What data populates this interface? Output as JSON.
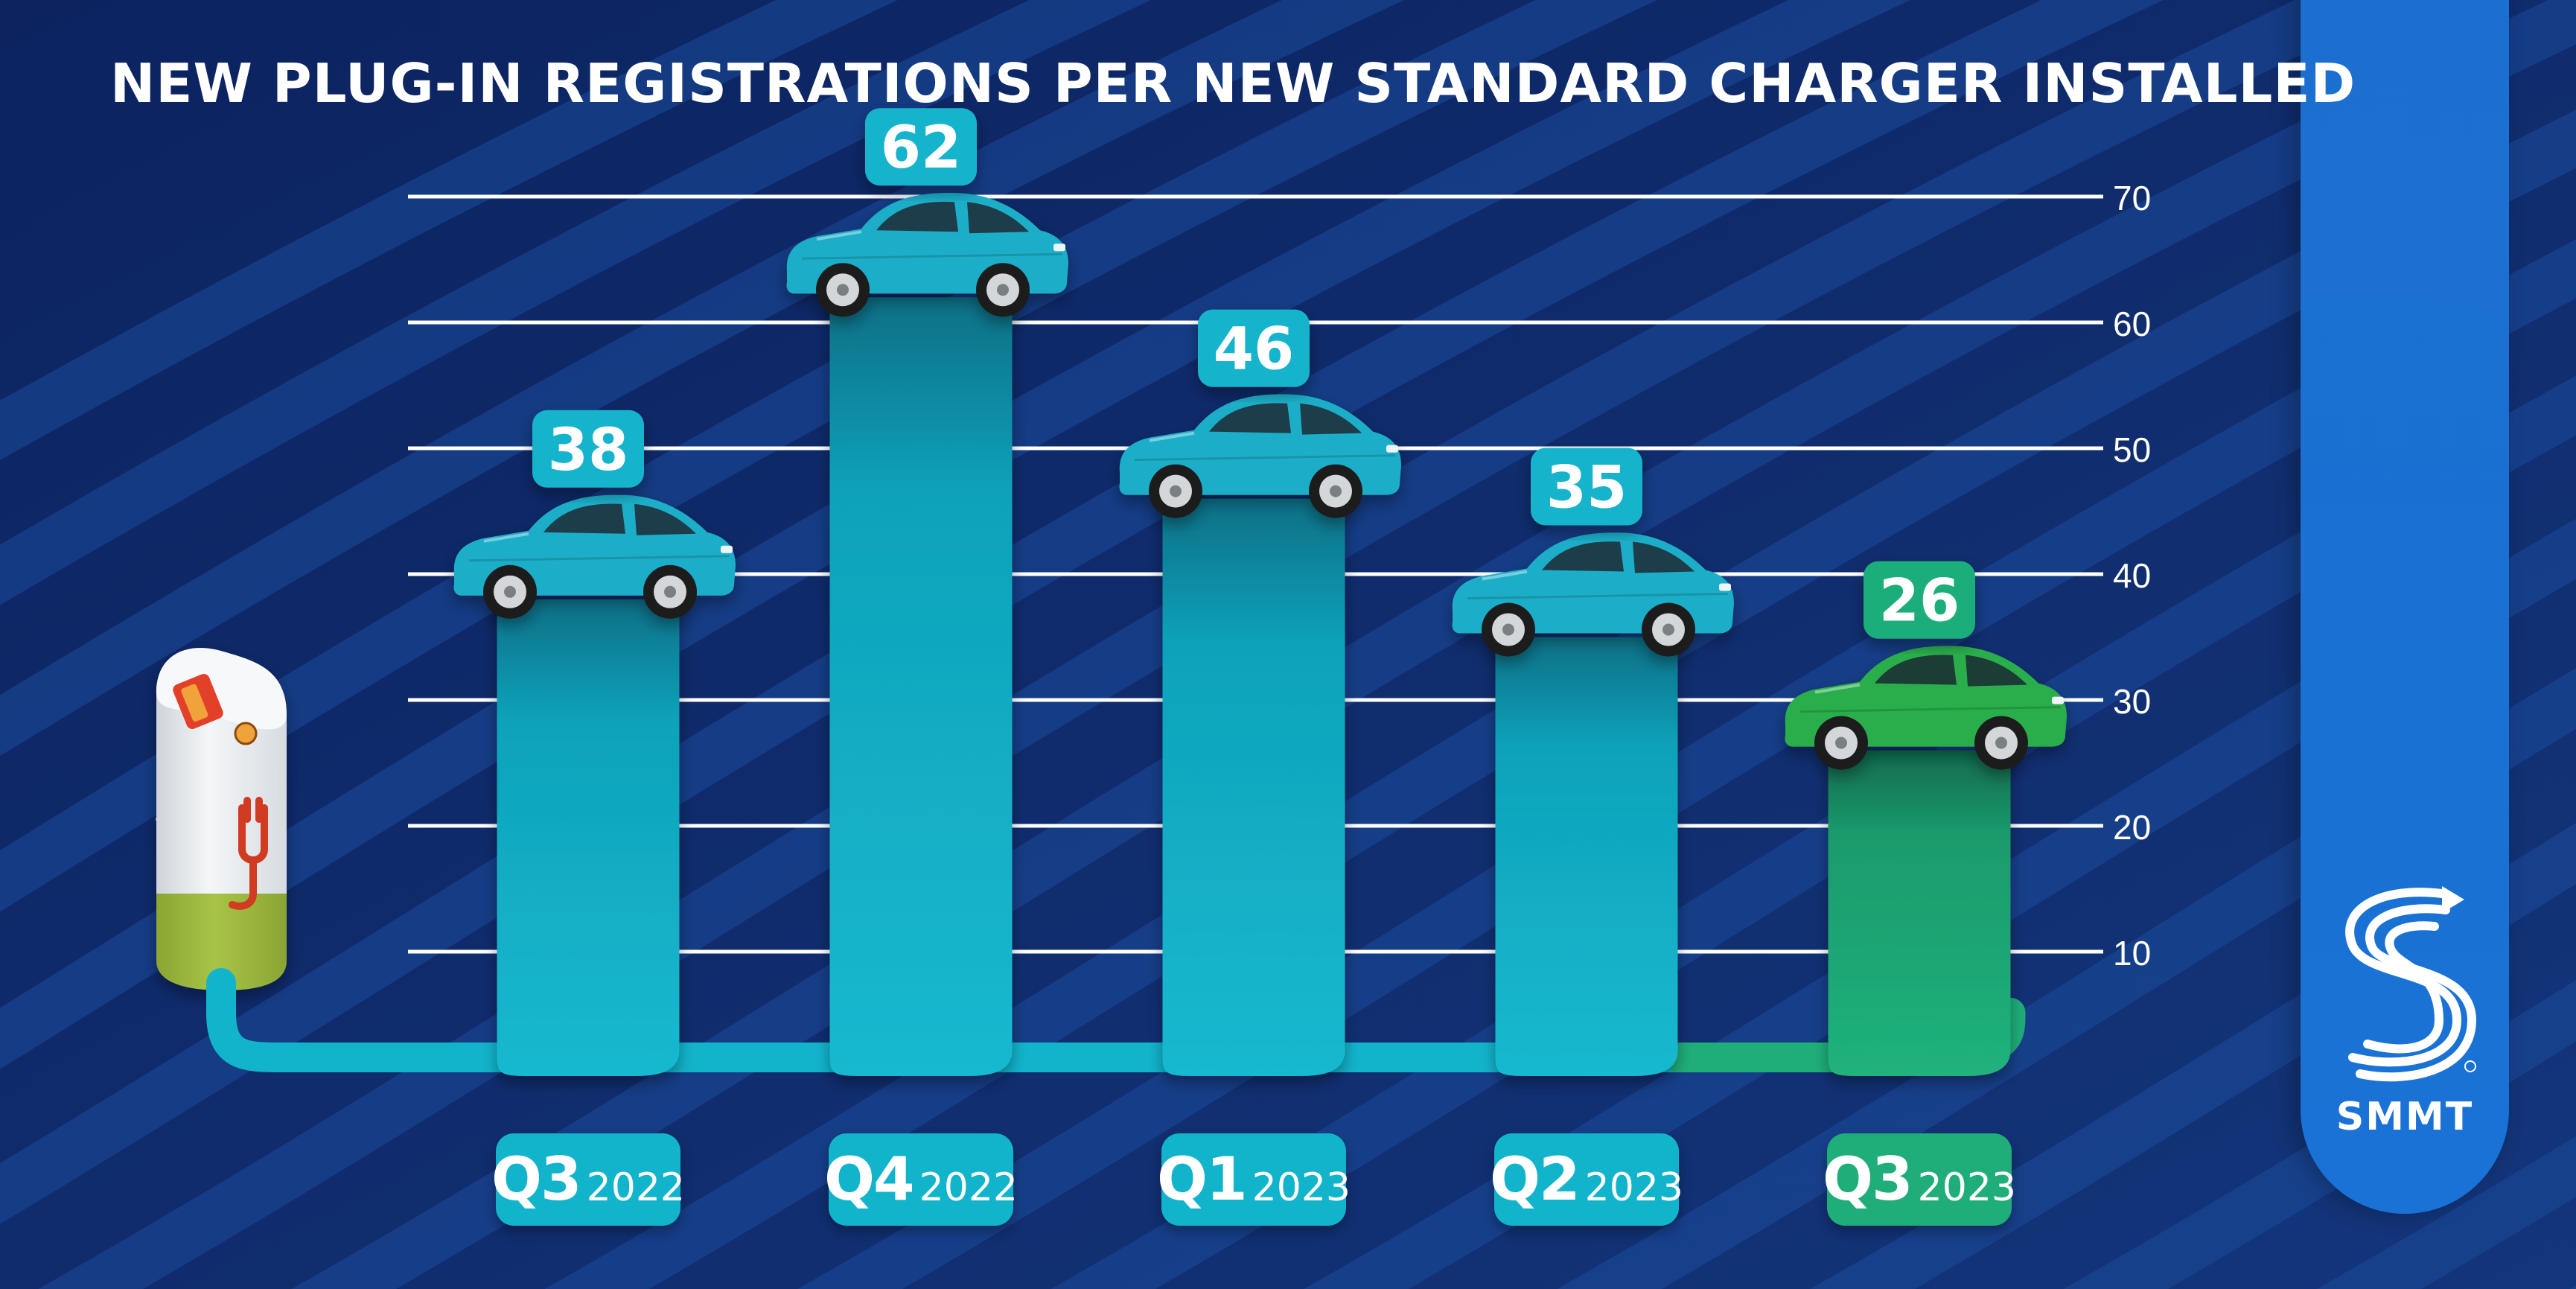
{
  "title": "NEW PLUG-IN REGISTRATIONS PER NEW STANDARD CHARGER INSTALLED",
  "brand": {
    "name": "SMMT"
  },
  "colors": {
    "background": "#0f2a66",
    "stripe": "#1c4a9a",
    "teal": "#12b4cc",
    "green": "#1fae7a",
    "gridline": "#ffffff",
    "brand_blue": "#1a72d6",
    "charger_white": "#e7eaee",
    "charger_green": "#9bb83b",
    "plug_red": "#d13a24"
  },
  "icons": [
    "charger-station-icon",
    "plug-icon",
    "car-icon",
    "smmt-logo-icon"
  ],
  "chart_data": {
    "type": "bar",
    "title": "NEW PLUG-IN REGISTRATIONS PER NEW STANDARD CHARGER INSTALLED",
    "xlabel": "",
    "ylabel": "",
    "ylim": [
      0,
      70
    ],
    "y_ticks": [
      10,
      20,
      30,
      40,
      50,
      60,
      70
    ],
    "grid": true,
    "categories": [
      {
        "quarter": "Q3",
        "year": "2022"
      },
      {
        "quarter": "Q4",
        "year": "2022"
      },
      {
        "quarter": "Q1",
        "year": "2023"
      },
      {
        "quarter": "Q2",
        "year": "2023"
      },
      {
        "quarter": "Q3",
        "year": "2023"
      }
    ],
    "values": [
      38,
      62,
      46,
      35,
      26
    ],
    "highlight_index": 4
  }
}
